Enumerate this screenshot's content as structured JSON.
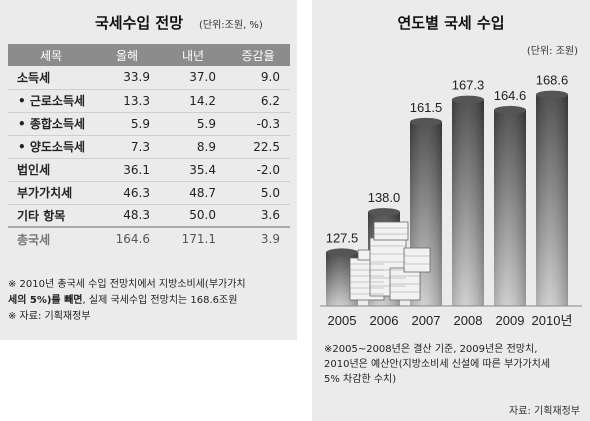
{
  "left": {
    "title": "국세수입 전망",
    "unit": "(단위:조원, %)",
    "headers": [
      "세목",
      "올해",
      "내년",
      "증감율"
    ],
    "rows": [
      {
        "name": "소득세",
        "this_year": "33.9",
        "next_year": "37.0",
        "change": "9.0"
      },
      {
        "name": "• 근로소득세",
        "this_year": "13.3",
        "next_year": "14.2",
        "change": "6.2"
      },
      {
        "name": "• 종합소득세",
        "this_year": "5.9",
        "next_year": "5.9",
        "change": "-0.3"
      },
      {
        "name": "• 양도소득세",
        "this_year": "7.3",
        "next_year": "8.9",
        "change": "22.5"
      },
      {
        "name": "법인세",
        "this_year": "36.1",
        "next_year": "35.4",
        "change": "-2.0"
      },
      {
        "name": "부가가치세",
        "this_year": "46.3",
        "next_year": "48.7",
        "change": "5.0"
      },
      {
        "name": "기타 항목",
        "this_year": "48.3",
        "next_year": "50.0",
        "change": "3.6"
      }
    ],
    "total": {
      "name": "총국세",
      "this_year": "164.6",
      "next_year": "171.1",
      "change": "3.9"
    },
    "note1_a": "※ 2010년 총국세 수입 전망치에서 지방소비세(부가가치",
    "note1_b_bold": "세의 5%)를 빼면",
    "note1_b_rest": ", 실제 국세수입 전망치는 168.6조원",
    "note2": "※ 자료: 기획재정부"
  },
  "right": {
    "title": "연도별 국세 수입",
    "unit": "(단위: 조원)",
    "note_line1": "※2005~2008년은 결산 기준, 2009년은 전망치,",
    "note_line2": "2010년은 예산안(지방소비세 신설에 따른 부가가치세",
    "note_line3": "5% 차감한 수치)",
    "source": "자료: 기획재정부"
  },
  "chart_data": {
    "type": "bar",
    "title": "연도별 국세 수입",
    "categories": [
      "2005",
      "2006",
      "2007",
      "2008",
      "2009",
      "2010년"
    ],
    "values": [
      127.5,
      138.0,
      161.5,
      167.3,
      164.6,
      168.6
    ],
    "value_labels": [
      "127.5",
      "138.0",
      "161.5",
      "167.3",
      "164.6",
      "168.6"
    ],
    "unit": "(단위: 조원)",
    "bar_color_top": "#444444",
    "bar_color_bottom": "#cccccc"
  }
}
